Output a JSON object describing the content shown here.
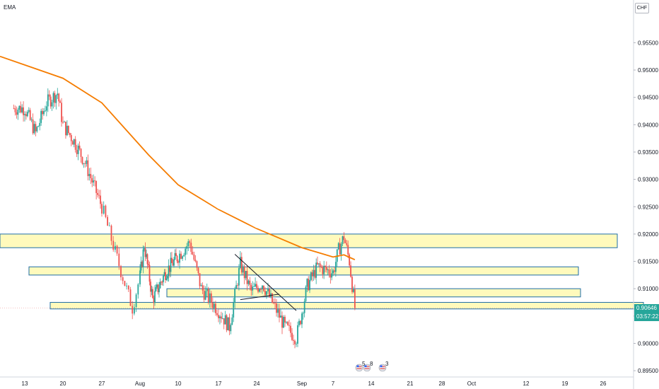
{
  "legend": {
    "indicator": "EMA"
  },
  "currency_badge": "CHF",
  "price_tag": {
    "value": "0.90646",
    "countdown": "03:57:22"
  },
  "colors": {
    "up": "#26a69a",
    "down": "#ef5350",
    "ema": "#f57c00",
    "zone_fill": "#fff9b0",
    "zone_border": "#1e6ea7",
    "price_tag": "#26a69a",
    "trendline": "#131722"
  },
  "events": [
    {
      "icon": "us-flag-icon",
      "count": "5"
    },
    {
      "icon": "us-flag-icon",
      "count": "8"
    },
    {
      "icon": "us-flag-icon",
      "count": "3"
    }
  ],
  "chart_data": {
    "type": "candlestick",
    "symbol_currency": "CHF",
    "timeframe": "4h",
    "x_tick_labels": [
      "13",
      "20",
      "27",
      "Aug",
      "10",
      "17",
      "24",
      "Sep",
      "7",
      "14",
      "21",
      "28",
      "Oct",
      "12",
      "19",
      "26"
    ],
    "y_tick_labels": [
      "0.95500",
      "0.95000",
      "0.94500",
      "0.94000",
      "0.93500",
      "0.93000",
      "0.92500",
      "0.92000",
      "0.91500",
      "0.91000",
      "0.90500",
      "0.90000",
      "0.89500"
    ],
    "ylim": [
      0.8945,
      0.961
    ],
    "last_price": 0.90646,
    "price_path": [
      [
        "13",
        0.943
      ],
      [
        "15",
        0.9385
      ],
      [
        "17",
        0.944
      ],
      [
        "19",
        0.9458
      ],
      [
        "20",
        0.94
      ],
      [
        "22",
        0.937
      ],
      [
        "24",
        0.933
      ],
      [
        "27",
        0.925
      ],
      [
        "29",
        0.9155
      ],
      [
        "31",
        0.9065
      ],
      [
        "Aug 2",
        0.918
      ],
      [
        "Aug 4",
        0.908
      ],
      [
        "Aug 7",
        0.913
      ],
      [
        "Aug 10",
        0.916
      ],
      [
        "Aug 12",
        0.9185
      ],
      [
        "Aug 14",
        0.91
      ],
      [
        "Aug 17",
        0.906
      ],
      [
        "Aug 19",
        0.903
      ],
      [
        "Aug 21",
        0.9145
      ],
      [
        "Aug 23",
        0.9095
      ],
      [
        "Aug 25",
        0.911
      ],
      [
        "Aug 27",
        0.907
      ],
      [
        "Aug 29",
        0.903
      ],
      [
        "Aug 31",
        0.901
      ],
      [
        "Sep 2",
        0.9105
      ],
      [
        "Sep 4",
        0.914
      ],
      [
        "Sep 7",
        0.913
      ],
      [
        "Sep 8",
        0.917
      ],
      [
        "Sep 9",
        0.9195
      ],
      [
        "Sep 10",
        0.915
      ],
      [
        "Sep 11",
        0.90646
      ]
    ],
    "ema": [
      [
        "12",
        0.9525
      ],
      [
        "20",
        0.9485
      ],
      [
        "27",
        0.944
      ],
      [
        "Aug 3",
        0.9345
      ],
      [
        "Aug 10",
        0.929
      ],
      [
        "Aug 17",
        0.9245
      ],
      [
        "Aug 24",
        0.921
      ],
      [
        "Sep 1",
        0.9175
      ],
      [
        "Sep 7",
        0.9158
      ],
      [
        "Sep 9",
        0.9162
      ],
      [
        "Sep 11",
        0.9153
      ]
    ],
    "zones": [
      {
        "from": 0.92,
        "to": 0.9175
      },
      {
        "from": 0.914,
        "to": 0.9125
      },
      {
        "from": 0.91,
        "to": 0.9085
      },
      {
        "from": 0.9075,
        "to": 0.9063
      }
    ],
    "trendlines": [
      {
        "from": [
          "Aug 20",
          0.9163
        ],
        "to": [
          "Aug 31",
          0.906
        ]
      },
      {
        "from": [
          "Aug 21",
          0.908
        ],
        "to": [
          "Aug 28",
          0.909
        ]
      }
    ],
    "grid": false,
    "legend_position": "top-left"
  }
}
